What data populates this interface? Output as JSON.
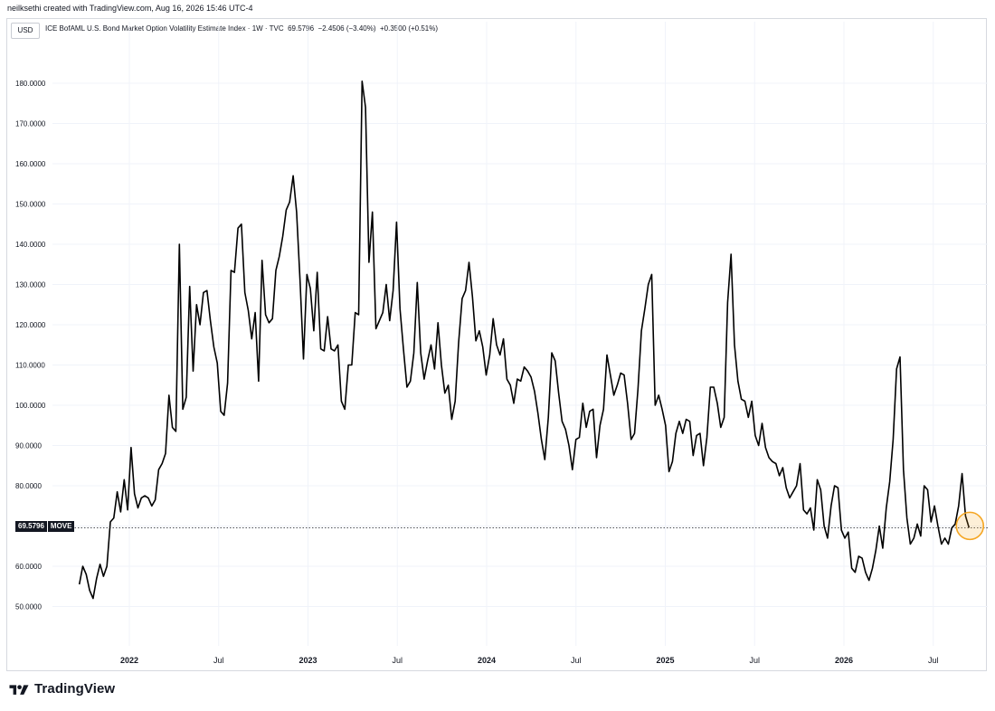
{
  "header": {
    "attribution": "neilksethi created with TradingView.com, Aug 16, 2026 15:46 UTC-4"
  },
  "toolbar": {
    "currency_label": "USD"
  },
  "legend": {
    "symbol_name": "ICE BofAML U.S. Bond Market Option Volatility Estimate Index · 1W · TVC",
    "last": "69.5796",
    "change": "−2.4506 (−3.40%)",
    "extra_change": "+0.3500 (+0.51%)"
  },
  "price_tag": {
    "value": "69.5796",
    "symbol": "MOVE"
  },
  "brand": {
    "name": "TradingView"
  },
  "colors": {
    "line": "#000000",
    "grid": "#f0f3fa",
    "axis_text": "#131722",
    "highlight_circle": "#f5a623",
    "last_price_line": "#131722"
  },
  "chart_data": {
    "type": "line",
    "title": "ICE BofAML U.S. Bond Market Option Volatility Estimate Index · 1W · TVC",
    "xlabel": "",
    "ylabel": "",
    "ylim": [
      40,
      190
    ],
    "y_ticks": [
      50,
      60,
      70,
      80,
      90,
      100,
      110,
      120,
      130,
      140,
      150,
      160,
      170,
      180
    ],
    "y_tick_labels": [
      "50.0000",
      "60.0000",
      "",
      "80.0000",
      "90.0000",
      "100.0000",
      "110.0000",
      "120.0000",
      "130.0000",
      "140.0000",
      "150.0000",
      "160.0000",
      "170.0000",
      "180.0000"
    ],
    "x_ticks": [
      {
        "t": 2022.0,
        "label": "2022"
      },
      {
        "t": 2022.5,
        "label": "Jul"
      },
      {
        "t": 2023.0,
        "label": "2023"
      },
      {
        "t": 2023.5,
        "label": "Jul"
      },
      {
        "t": 2024.0,
        "label": "2024"
      },
      {
        "t": 2024.5,
        "label": "Jul"
      },
      {
        "t": 2025.0,
        "label": "2025"
      },
      {
        "t": 2025.5,
        "label": "Jul"
      },
      {
        "t": 2026.0,
        "label": "2026"
      },
      {
        "t": 2026.5,
        "label": "Jul"
      }
    ],
    "last_value": 69.5796,
    "grid": true,
    "series": [
      {
        "values": [
          55.5,
          60,
          58,
          54,
          52,
          57,
          60.5,
          57.5,
          60,
          71,
          72,
          78.5,
          73.5,
          81.5,
          74,
          89.5,
          78,
          74.5,
          77,
          77.5,
          77,
          75,
          76.5,
          84,
          85.5,
          88,
          102.5,
          94.5,
          93.5,
          140,
          99,
          102,
          129.5,
          108.5,
          125,
          120,
          128,
          128.5,
          121,
          114.5,
          110.5,
          98.5,
          97.5,
          105.5,
          133.5,
          133,
          144,
          145,
          128,
          123.5,
          116.5,
          123,
          106,
          136,
          122.5,
          120.5,
          121.5,
          133.5,
          137,
          142,
          148.5,
          150.5,
          157,
          148,
          131,
          111.5,
          132.5,
          129,
          118.5,
          133,
          114,
          113.5,
          122,
          114,
          113.5,
          115,
          101,
          99,
          110,
          110,
          123,
          122.5,
          180.5,
          174,
          135.5,
          148,
          119,
          121,
          123,
          130,
          121,
          128.5,
          145.5,
          124,
          114,
          104.5,
          106,
          113,
          130.5,
          113,
          106.5,
          111,
          115,
          109,
          120.5,
          110,
          103,
          105,
          96.5,
          101,
          115.5,
          126.5,
          128.5,
          135.5,
          127,
          116,
          118.5,
          114.5,
          107.5,
          112.5,
          121.5,
          115,
          112.5,
          116.5,
          106.5,
          105,
          100.5,
          106.5,
          106,
          109.5,
          108.5,
          107,
          103.5,
          98,
          91.5,
          86.5,
          97,
          113,
          111,
          103,
          96,
          94,
          90,
          84,
          91.5,
          92,
          100.5,
          94.5,
          98.5,
          99,
          87,
          95,
          99,
          112.5,
          107.5,
          102.5,
          105,
          108,
          107.5,
          100.5,
          91.5,
          93,
          104,
          118.5,
          124,
          130,
          132.5,
          100,
          102.5,
          99,
          95,
          83.5,
          86,
          93,
          96,
          93,
          96.5,
          96,
          87.5,
          92.5,
          93,
          85,
          92,
          104.5,
          104.5,
          100.5,
          94.5,
          97,
          125.5,
          137.5,
          115,
          106,
          101.5,
          101,
          97,
          101,
          92.5,
          90,
          95.5,
          89.5,
          87,
          86,
          85.5,
          82.5,
          84.5,
          79.5,
          77,
          78.5,
          80,
          85.5,
          74,
          73,
          74.5,
          69,
          81.5,
          79,
          70,
          67,
          75,
          80,
          79.5,
          69,
          67,
          68.5,
          59.5,
          58.5,
          62.5,
          62,
          58.5,
          56.5,
          59.5,
          64,
          70,
          64.5,
          74.5,
          81,
          91.5,
          109,
          112,
          84,
          72,
          65.5,
          67,
          70.5,
          67.5,
          80,
          79,
          71,
          75,
          70,
          65.5,
          67,
          65.5,
          69.5,
          70.5,
          75,
          83,
          72.5,
          69.5796
        ]
      }
    ]
  }
}
